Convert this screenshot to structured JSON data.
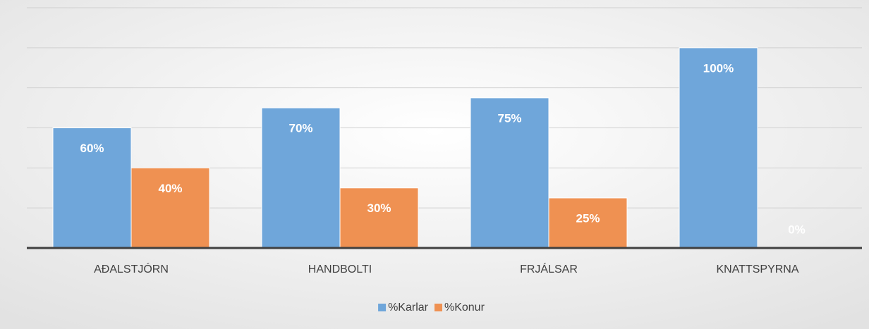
{
  "chart_data": {
    "type": "bar",
    "categories": [
      "AÐALSTJÓRN",
      "HANDBOLTI",
      "FRJÁLSAR",
      "KNATTSPYRNA"
    ],
    "series": [
      {
        "name": "%Karlar",
        "color": "#6fa6da",
        "values": [
          60,
          70,
          75,
          100
        ],
        "value_labels": [
          "60%",
          "70%",
          "75%",
          "100%"
        ]
      },
      {
        "name": "%Konur",
        "color": "#ef9152",
        "values": [
          40,
          30,
          25,
          0
        ],
        "value_labels": [
          "40%",
          "30%",
          "25%",
          "0%"
        ]
      }
    ],
    "ylim": [
      0,
      120
    ],
    "yticks": [
      0,
      20,
      40,
      60,
      80,
      100,
      120
    ],
    "grid": true,
    "y_tick_labels": false,
    "legend": "bottom"
  }
}
